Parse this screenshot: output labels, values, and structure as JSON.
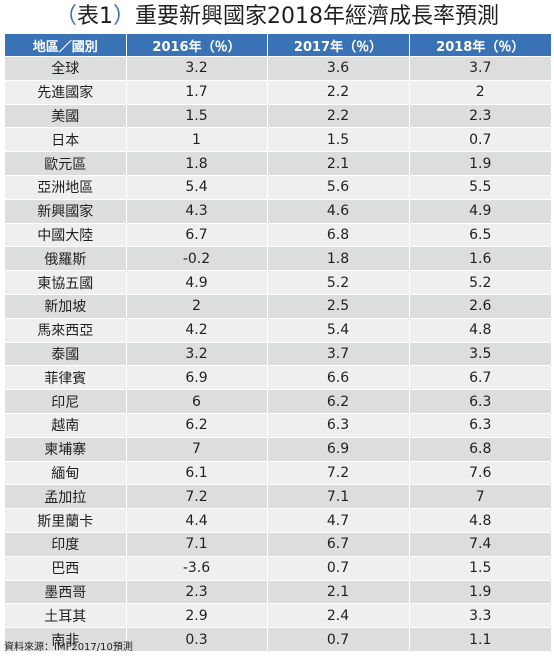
{
  "title": {
    "open": "（",
    "label": "表1",
    "close": "）",
    "text": "重要新興國家2018年經濟成長率預測"
  },
  "table": {
    "headers": [
      "地區／國別",
      "2016年（％）",
      "2017年（％）",
      "2018年（％）"
    ],
    "rows": [
      [
        "全球",
        "3.2",
        "3.6",
        "3.7"
      ],
      [
        "先進國家",
        "1.7",
        "2.2",
        "2"
      ],
      [
        "美國",
        "1.5",
        "2.2",
        "2.3"
      ],
      [
        "日本",
        "1",
        "1.5",
        "0.7"
      ],
      [
        "歐元區",
        "1.8",
        "2.1",
        "1.9"
      ],
      [
        "亞洲地區",
        "5.4",
        "5.6",
        "5.5"
      ],
      [
        "新興國家",
        "4.3",
        "4.6",
        "4.9"
      ],
      [
        "中國大陸",
        "6.7",
        "6.8",
        "6.5"
      ],
      [
        "俄羅斯",
        "-0.2",
        "1.8",
        "1.6"
      ],
      [
        "東協五國",
        "4.9",
        "5.2",
        "5.2"
      ],
      [
        "新加坡",
        "2",
        "2.5",
        "2.6"
      ],
      [
        "馬來西亞",
        "4.2",
        "5.4",
        "4.8"
      ],
      [
        "泰國",
        "3.2",
        "3.7",
        "3.5"
      ],
      [
        "菲律賓",
        "6.9",
        "6.6",
        "6.7"
      ],
      [
        "印尼",
        "6",
        "6.2",
        "6.3"
      ],
      [
        "越南",
        "6.2",
        "6.3",
        "6.3"
      ],
      [
        "柬埔寨",
        "7",
        "6.9",
        "6.8"
      ],
      [
        "緬甸",
        "6.1",
        "7.2",
        "7.6"
      ],
      [
        "孟加拉",
        "7.2",
        "7.1",
        "7"
      ],
      [
        "斯里蘭卡",
        "4.4",
        "4.7",
        "4.8"
      ],
      [
        "印度",
        "7.1",
        "6.7",
        "7.4"
      ],
      [
        "巴西",
        "-3.6",
        "0.7",
        "1.5"
      ],
      [
        "墨西哥",
        "2.3",
        "2.1",
        "1.9"
      ],
      [
        "土耳其",
        "2.9",
        "2.4",
        "3.3"
      ],
      [
        "南非",
        "0.3",
        "0.7",
        "1.1"
      ]
    ]
  },
  "source": "資料來源：IMF2017/10預測",
  "colors": {
    "header_bg": "#3a73b5",
    "row_dark": "#dcdddd",
    "row_light": "#efefef"
  }
}
